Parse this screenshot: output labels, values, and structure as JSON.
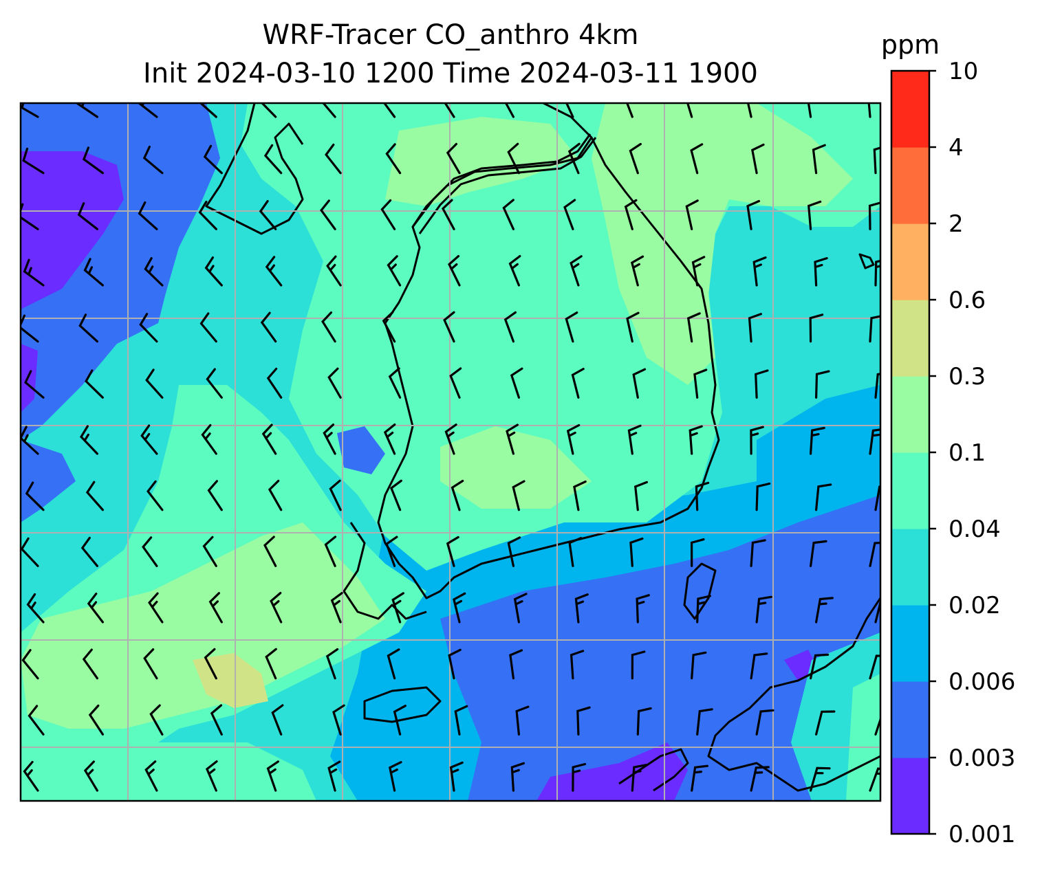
{
  "title": {
    "line1": "WRF-Tracer CO_anthro 4km",
    "line2": "Init 2024-03-10 1200 Time 2024-03-11 1900"
  },
  "colorbar": {
    "unit": "ppm",
    "levels": [
      "0.001",
      "0.003",
      "0.006",
      "0.02",
      "0.04",
      "0.1",
      "0.3",
      "0.6",
      "2",
      "4",
      "10"
    ],
    "colors": [
      "#6a2cff",
      "#3671f5",
      "#00b4ed",
      "#2ce0d8",
      "#5cfcc0",
      "#9afca2",
      "#d0e386",
      "#ffb061",
      "#ff6e3a",
      "#ff2a1a"
    ]
  },
  "map": {
    "background_color": "#2ce0d8",
    "gridline_color": "#b0b0b0",
    "coastline_color": "#000000",
    "wind_barb_color": "#000000"
  }
}
